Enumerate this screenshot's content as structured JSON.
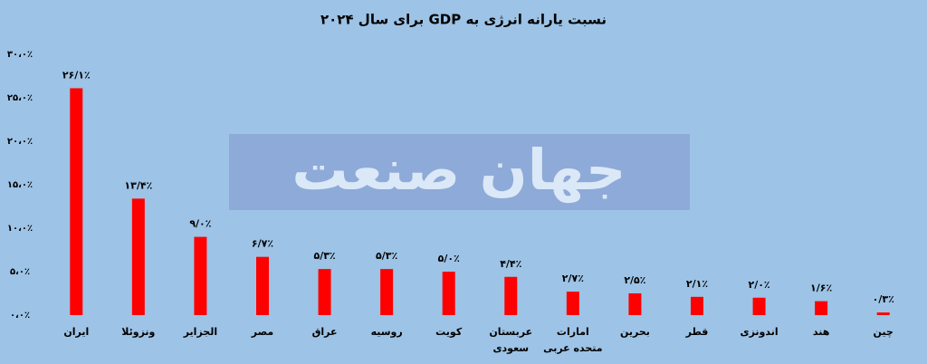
{
  "watermark": "جهان صنعت",
  "chart_data": {
    "type": "bar",
    "title": "نسبت یارانه انرژی به GDP برای سال ۲۰۲۴",
    "categories": [
      "ایران",
      "ونزوئلا",
      "الجزایر",
      "مصر",
      "عراق",
      "روسیه",
      "کویت",
      "عربستان سعودی",
      "امارات متحده عربی",
      "بحرین",
      "قطر",
      "اندونزی",
      "هند",
      "چین"
    ],
    "values": [
      26.1,
      13.4,
      9.0,
      6.7,
      5.3,
      5.3,
      5.0,
      4.4,
      2.7,
      2.5,
      2.1,
      2.0,
      1.6,
      0.3
    ],
    "value_labels": [
      "۲۶/۱٪",
      "۱۳/۴٪",
      "۹/۰٪",
      "۶/۷٪",
      "۵/۳٪",
      "۵/۳٪",
      "۵/۰٪",
      "۴/۴٪",
      "۲/۷٪",
      "۲/۵٪",
      "۲/۱٪",
      "۲/۰٪",
      "۱/۶٪",
      "۰/۳٪"
    ],
    "color": "#ff0000",
    "ylim": [
      0,
      30
    ],
    "yticks": [
      {
        "value": 0,
        "label": "۰،۰٪"
      },
      {
        "value": 5,
        "label": "۵،۰٪"
      },
      {
        "value": 10,
        "label": "۱۰،۰٪"
      },
      {
        "value": 15,
        "label": "۱۵،۰٪"
      },
      {
        "value": 20,
        "label": "۲۰،۰٪"
      },
      {
        "value": 25,
        "label": "۲۵،۰٪"
      },
      {
        "value": 30,
        "label": "۳۰،۰٪"
      }
    ]
  }
}
